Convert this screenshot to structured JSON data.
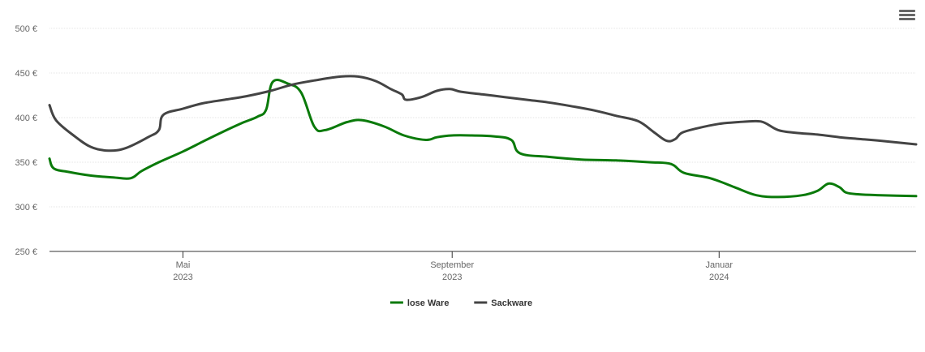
{
  "chart_data": {
    "type": "line",
    "title": "",
    "xlabel": "",
    "ylabel": "",
    "ylim": [
      250,
      500
    ],
    "y_ticks": [
      250,
      300,
      350,
      400,
      450,
      500
    ],
    "y_tick_labels": [
      "250 €",
      "300 €",
      "350 €",
      "400 €",
      "450 €",
      "500 €"
    ],
    "x_range": [
      "2023-03-01",
      "2024-03-31"
    ],
    "x_ticks": [
      {
        "date": "2023-05-01",
        "label": "Mai",
        "year": "2023"
      },
      {
        "date": "2023-09-01",
        "label": "September",
        "year": "2023"
      },
      {
        "date": "2024-01-01",
        "label": "Januar",
        "year": "2024"
      }
    ],
    "grid": true,
    "legend_position": "bottom-center",
    "colors": {
      "lose_ware": "#0a7a0a",
      "sackware": "#444444"
    },
    "series": [
      {
        "name": "lose Ware",
        "color": "#0a7a0a",
        "points": [
          [
            "2023-03-01",
            354
          ],
          [
            "2023-03-03",
            343
          ],
          [
            "2023-03-10",
            339
          ],
          [
            "2023-03-20",
            335
          ],
          [
            "2023-03-30",
            333
          ],
          [
            "2023-04-07",
            332
          ],
          [
            "2023-04-12",
            340
          ],
          [
            "2023-04-20",
            350
          ],
          [
            "2023-05-01",
            362
          ],
          [
            "2023-05-10",
            373
          ],
          [
            "2023-05-20",
            385
          ],
          [
            "2023-05-28",
            394
          ],
          [
            "2023-06-04",
            401
          ],
          [
            "2023-06-08",
            409
          ],
          [
            "2023-06-11",
            440
          ],
          [
            "2023-06-18",
            438
          ],
          [
            "2023-06-24",
            428
          ],
          [
            "2023-06-30",
            390
          ],
          [
            "2023-07-05",
            386
          ],
          [
            "2023-07-15",
            395
          ],
          [
            "2023-07-22",
            397
          ],
          [
            "2023-08-01",
            390
          ],
          [
            "2023-08-10",
            380
          ],
          [
            "2023-08-20",
            375
          ],
          [
            "2023-09-01",
            380
          ],
          [
            "2023-08-25",
            378
          ],
          [
            "2023-09-10",
            380
          ],
          [
            "2023-09-20",
            379
          ],
          [
            "2023-09-28",
            375
          ],
          [
            "2023-10-02",
            360
          ],
          [
            "2023-10-15",
            356
          ],
          [
            "2023-10-30",
            353
          ],
          [
            "2023-11-15",
            352
          ],
          [
            "2023-11-30",
            350
          ],
          [
            "2023-12-10",
            348
          ],
          [
            "2023-12-16",
            338
          ],
          [
            "2023-12-28",
            332
          ],
          [
            "2024-01-08",
            322
          ],
          [
            "2024-01-18",
            313
          ],
          [
            "2024-01-28",
            311
          ],
          [
            "2024-02-08",
            313
          ],
          [
            "2024-02-15",
            318
          ],
          [
            "2024-02-20",
            326
          ],
          [
            "2024-02-25",
            322
          ],
          [
            "2024-02-28",
            316
          ],
          [
            "2024-03-05",
            314
          ],
          [
            "2024-03-15",
            313
          ],
          [
            "2024-03-31",
            312
          ]
        ]
      },
      {
        "name": "Sackware",
        "color": "#444444",
        "points": [
          [
            "2023-03-01",
            414
          ],
          [
            "2023-03-04",
            397
          ],
          [
            "2023-03-12",
            380
          ],
          [
            "2023-03-20",
            367
          ],
          [
            "2023-03-28",
            363
          ],
          [
            "2023-04-05",
            366
          ],
          [
            "2023-04-15",
            378
          ],
          [
            "2023-04-20",
            386
          ],
          [
            "2023-04-22",
            403
          ],
          [
            "2023-05-01",
            410
          ],
          [
            "2023-05-10",
            416
          ],
          [
            "2023-05-20",
            420
          ],
          [
            "2023-05-30",
            424
          ],
          [
            "2023-06-10",
            430
          ],
          [
            "2023-06-20",
            437
          ],
          [
            "2023-07-01",
            442
          ],
          [
            "2023-07-12",
            446
          ],
          [
            "2023-07-20",
            446
          ],
          [
            "2023-07-28",
            441
          ],
          [
            "2023-08-04",
            432
          ],
          [
            "2023-08-09",
            426
          ],
          [
            "2023-08-11",
            420
          ],
          [
            "2023-08-18",
            423
          ],
          [
            "2023-08-25",
            430
          ],
          [
            "2023-08-31",
            432
          ],
          [
            "2023-09-05",
            429
          ],
          [
            "2023-09-15",
            426
          ],
          [
            "2023-09-25",
            423
          ],
          [
            "2023-10-05",
            420
          ],
          [
            "2023-10-15",
            417
          ],
          [
            "2023-10-25",
            413
          ],
          [
            "2023-11-05",
            408
          ],
          [
            "2023-11-15",
            402
          ],
          [
            "2023-11-25",
            396
          ],
          [
            "2023-12-02",
            384
          ],
          [
            "2023-12-08",
            374
          ],
          [
            "2023-12-12",
            376
          ],
          [
            "2023-12-15",
            383
          ],
          [
            "2023-12-22",
            388
          ],
          [
            "2024-01-01",
            393
          ],
          [
            "2024-01-10",
            395
          ],
          [
            "2024-01-18",
            396
          ],
          [
            "2024-01-22",
            394
          ],
          [
            "2024-01-28",
            386
          ],
          [
            "2024-02-05",
            383
          ],
          [
            "2024-02-15",
            381
          ],
          [
            "2024-02-25",
            378
          ],
          [
            "2024-03-05",
            376
          ],
          [
            "2024-03-15",
            374
          ],
          [
            "2024-03-31",
            370
          ]
        ]
      }
    ]
  }
}
